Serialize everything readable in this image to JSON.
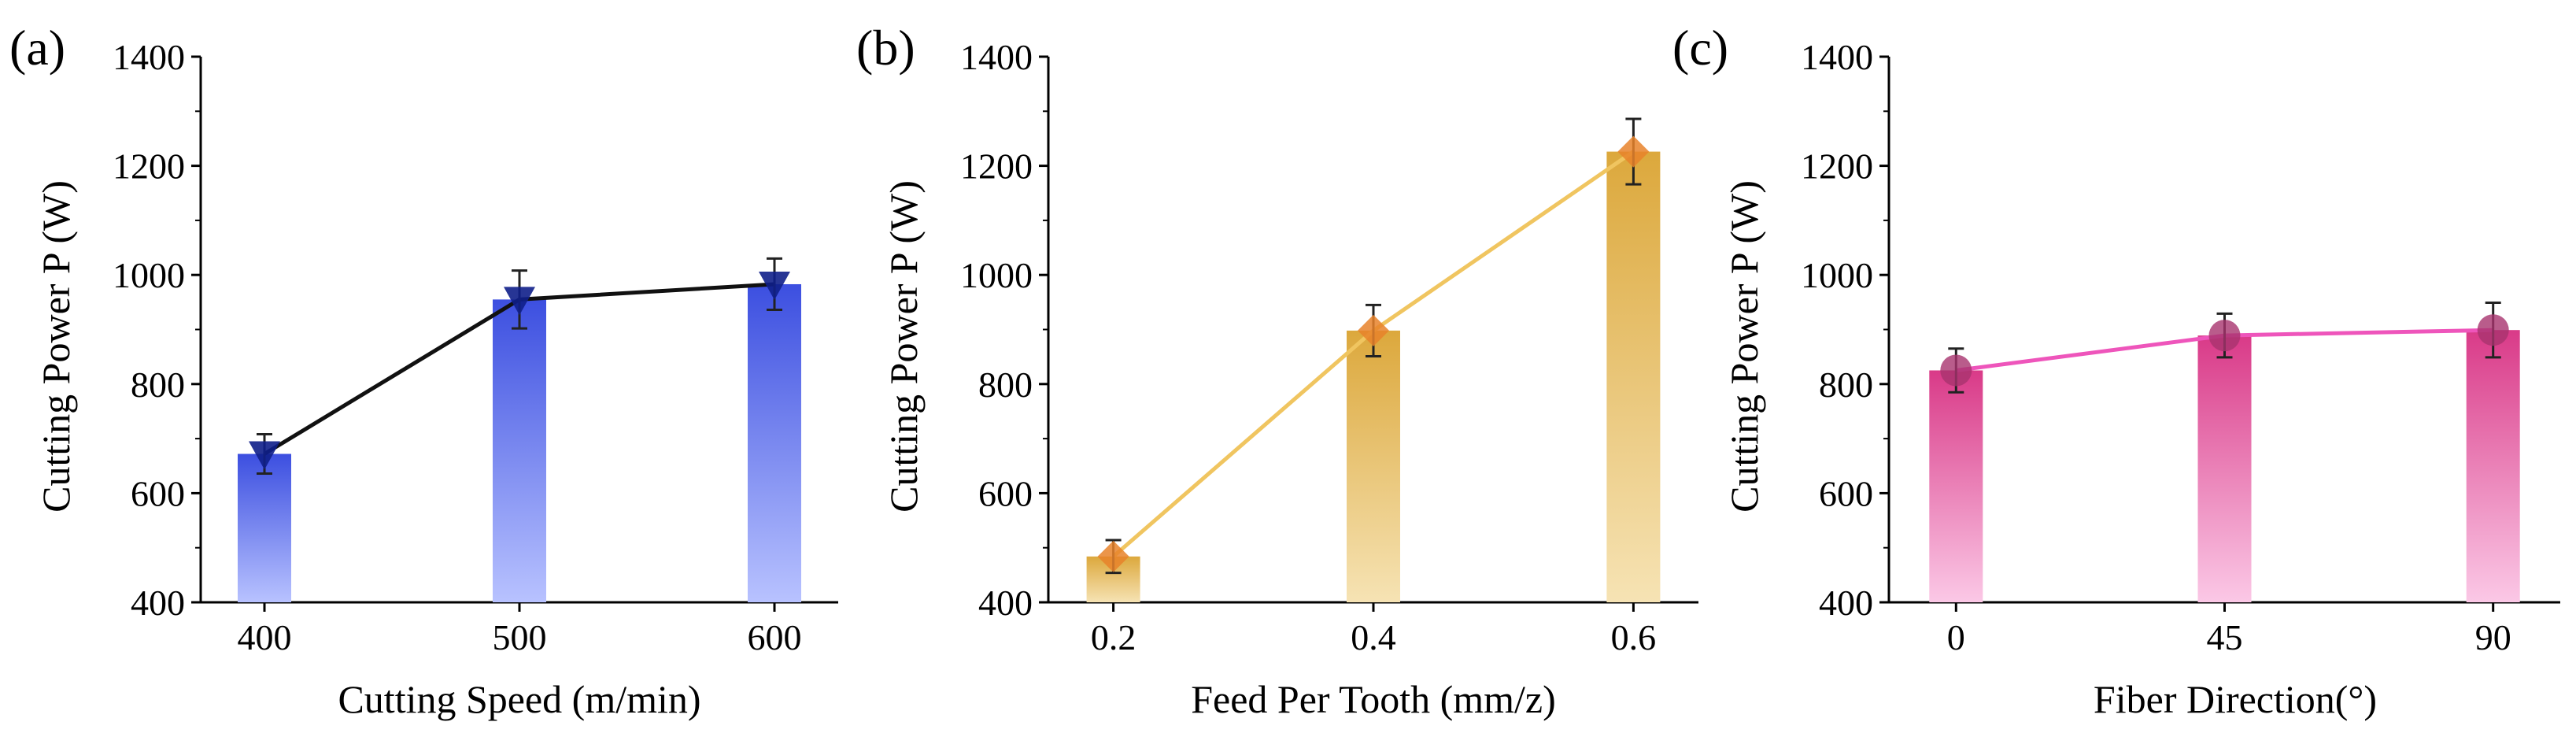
{
  "colors": {
    "a_bar_top": "#3c4fe0",
    "a_bar_bottom": "#b8c2ff",
    "a_line": "#111111",
    "a_marker": "#0f1f8a",
    "b_bar_top": "#dca83c",
    "b_bar_bottom": "#f6e3b4",
    "b_line": "#f0c560",
    "b_marker": "#e8822a",
    "c_bar_top": "#d93a88",
    "c_bar_bottom": "#fbc8e6",
    "c_line": "#ee55bb",
    "c_marker": "#a8336e"
  },
  "chart_data": [
    {
      "panel": "(a)",
      "type": "bar",
      "categories": [
        "400",
        "500",
        "600"
      ],
      "values": [
        672,
        955,
        983
      ],
      "errors": [
        36,
        53,
        47
      ],
      "line_marker": "triangle-down",
      "xlabel": "Cutting Speed   (m/min)",
      "ylabel": "Cutting Power  P (W)",
      "ylim": [
        400,
        1400
      ],
      "yticks": [
        "400",
        "600",
        "800",
        "1000",
        "1200",
        "1400"
      ],
      "grid": false
    },
    {
      "panel": "(b)",
      "type": "bar",
      "categories": [
        "0.2",
        "0.4",
        "0.6"
      ],
      "values": [
        484,
        898,
        1226
      ],
      "errors": [
        30,
        47,
        60
      ],
      "line_marker": "diamond",
      "xlabel": "Feed Per Tooth  (mm/z)",
      "ylabel": "Cutting Power  P (W)",
      "ylim": [
        400,
        1400
      ],
      "yticks": [
        "400",
        "600",
        "800",
        "1000",
        "1200",
        "1400"
      ],
      "grid": false
    },
    {
      "panel": "(c)",
      "type": "bar",
      "categories": [
        "0",
        "45",
        "90"
      ],
      "values": [
        825,
        889,
        899
      ],
      "errors": [
        40,
        40,
        50
      ],
      "line_marker": "circle",
      "xlabel": "Fiber Direction(°)",
      "ylabel": "Cutting Power P (W)",
      "ylim": [
        400,
        1400
      ],
      "yticks": [
        "400",
        "600",
        "800",
        "1000",
        "1200",
        "1400"
      ],
      "grid": false
    }
  ]
}
